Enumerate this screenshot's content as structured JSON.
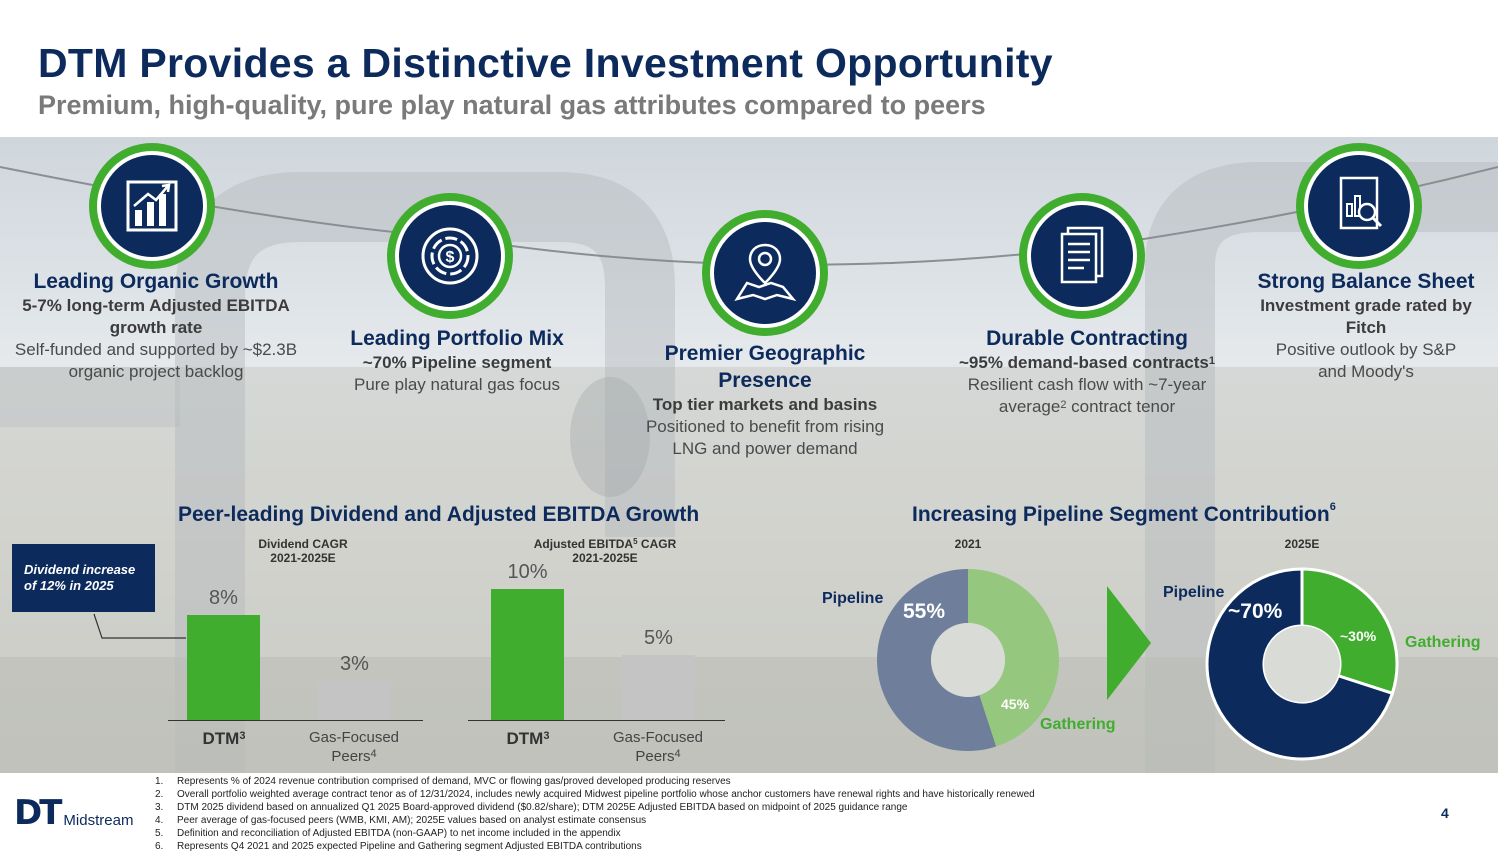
{
  "header": {
    "title": "DTM Provides a Distinctive Investment Opportunity",
    "subtitle": "Premium, high-quality, pure play natural gas attributes compared to peers"
  },
  "features": [
    {
      "icon": "growth-chart-icon",
      "heading": "Leading Organic Growth",
      "bold": "5-7% long-term Adjusted EBITDA growth rate",
      "text": "Self-funded and supported by ~$2.3B organic project backlog"
    },
    {
      "icon": "dollar-dial-icon",
      "heading": "Leading Portfolio Mix",
      "bold": "~70% Pipeline segment",
      "text": "Pure play natural gas focus"
    },
    {
      "icon": "map-pin-icon",
      "heading": "Premier Geographic Presence",
      "bold": "Top tier markets and basins",
      "text": "Positioned to benefit from rising LNG and power demand"
    },
    {
      "icon": "documents-icon",
      "heading": "Durable Contracting",
      "bold": "~95% demand-based contracts",
      "bold_sup": "1",
      "text_a": "Resilient cash flow with ~7-year average",
      "text_sup": "2",
      "text_b": " contract tenor"
    },
    {
      "icon": "report-magnifier-icon",
      "heading": "Strong Balance Sheet",
      "bold": "Investment grade rated by Fitch",
      "text": "Positive outlook by S&P and Moody's"
    }
  ],
  "growth_section": {
    "title": "Peer-leading Dividend and Adjusted EBITDA Growth",
    "callout": "Dividend increase of 12% in 2025"
  },
  "pipeline_section": {
    "title": "Increasing Pipeline Segment Contribution",
    "title_sup": "6",
    "arrow": "right-arrow-icon"
  },
  "chart_data": [
    {
      "type": "bar",
      "title_line1": "Dividend CAGR",
      "title_line2": "2021-2025E",
      "categories": [
        "DTM",
        "Gas-Focused Peers"
      ],
      "category_sups": [
        "3",
        "4"
      ],
      "values": [
        8,
        3
      ],
      "value_labels": [
        "8%",
        "3%"
      ],
      "colors": [
        "#41ad2f",
        "#c4c4c4"
      ],
      "ylim": [
        0,
        10
      ]
    },
    {
      "type": "bar",
      "title_line1": "Adjusted EBITDA",
      "title_sup": "5",
      "title_line1b": " CAGR",
      "title_line2": "2021-2025E",
      "categories": [
        "DTM",
        "Gas-Focused Peers"
      ],
      "category_sups": [
        "3",
        "4"
      ],
      "values": [
        10,
        5
      ],
      "value_labels": [
        "10%",
        "5%"
      ],
      "colors": [
        "#41ad2f",
        "#c4c4c4"
      ],
      "ylim": [
        0,
        10
      ]
    },
    {
      "type": "pie",
      "title": "2021",
      "labels": [
        "Pipeline",
        "Gathering"
      ],
      "values": [
        55,
        45
      ],
      "value_labels": [
        "55%",
        "45%"
      ],
      "colors": [
        "#6f7f9b",
        "#95c77e"
      ]
    },
    {
      "type": "pie",
      "title": "2025E",
      "labels": [
        "Pipeline",
        "Gathering"
      ],
      "values": [
        70,
        30
      ],
      "value_labels": [
        "~70%",
        "~30%"
      ],
      "colors": [
        "#0c2a5c",
        "#41ad2f"
      ]
    }
  ],
  "footnotes": [
    {
      "n": "1.",
      "text": "Represents % of 2024 revenue contribution comprised of demand, MVC or flowing gas/proved developed producing reserves"
    },
    {
      "n": "2.",
      "text": "Overall portfolio weighted average contract tenor as of 12/31/2024, includes newly acquired Midwest pipeline portfolio whose anchor customers have renewal rights and have historically renewed"
    },
    {
      "n": "3.",
      "text": "DTM 2025 dividend based on annualized Q1 2025 Board-approved dividend ($0.82/share); DTM 2025E Adjusted EBITDA based on midpoint of 2025 guidance range"
    },
    {
      "n": "4.",
      "text": "Peer average of gas-focused peers (WMB, KMI, AM); 2025E values based on analyst estimate consensus"
    },
    {
      "n": "5.",
      "text": "Definition and reconciliation of Adjusted EBITDA (non-GAAP) to net income included in the appendix"
    },
    {
      "n": "6.",
      "text": "Represents Q4 2021 and 2025 expected Pipeline and Gathering segment Adjusted EBITDA contributions"
    }
  ],
  "logo": {
    "mark": "DT",
    "name": "Midstream"
  },
  "page_number": "4"
}
